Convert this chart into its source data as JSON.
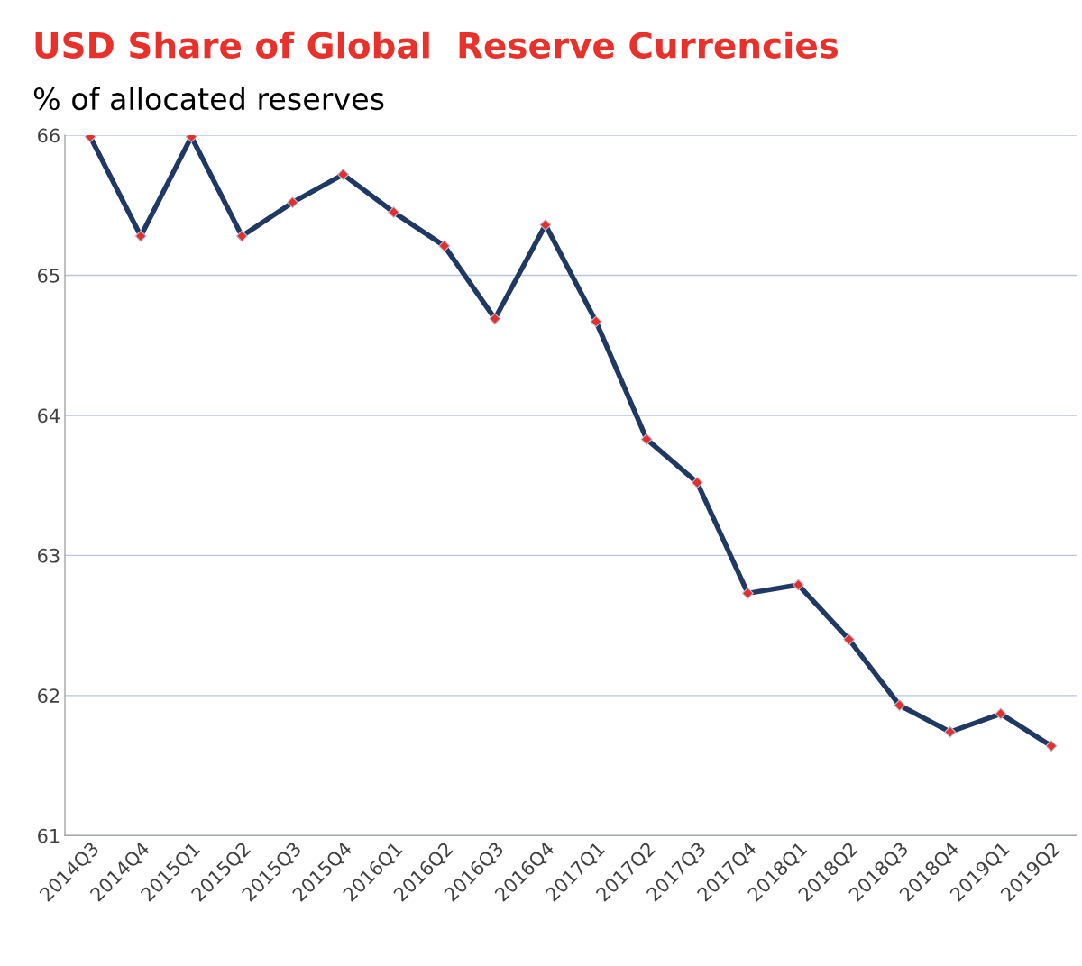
{
  "chart_data": {
    "type": "line",
    "title": "USD Share of Global  Reserve Currencies",
    "subtitle": "% of allocated reserves",
    "categories": [
      "2014Q3",
      "2014Q4",
      "2015Q1",
      "2015Q2",
      "2015Q3",
      "2015Q4",
      "2016Q1",
      "2016Q2",
      "2016Q3",
      "2016Q4",
      "2017Q1",
      "2017Q2",
      "2017Q3",
      "2017Q4",
      "2018Q1",
      "2018Q2",
      "2018Q3",
      "2018Q4",
      "2019Q1",
      "2019Q2"
    ],
    "series": [
      {
        "color": "#1f3864",
        "values": [
          65.99,
          65.28,
          65.99,
          65.28,
          65.52,
          65.72,
          65.45,
          65.21,
          64.69,
          65.36,
          64.67,
          63.83,
          63.52,
          62.73,
          62.79,
          62.4,
          61.93,
          61.74,
          61.87,
          61.64
        ]
      }
    ],
    "ylim": [
      61,
      66
    ],
    "yticks": [
      61,
      62,
      63,
      64,
      65,
      66
    ],
    "grid": "y",
    "marker": "diamond",
    "line_style": "solid",
    "legend": false
  }
}
